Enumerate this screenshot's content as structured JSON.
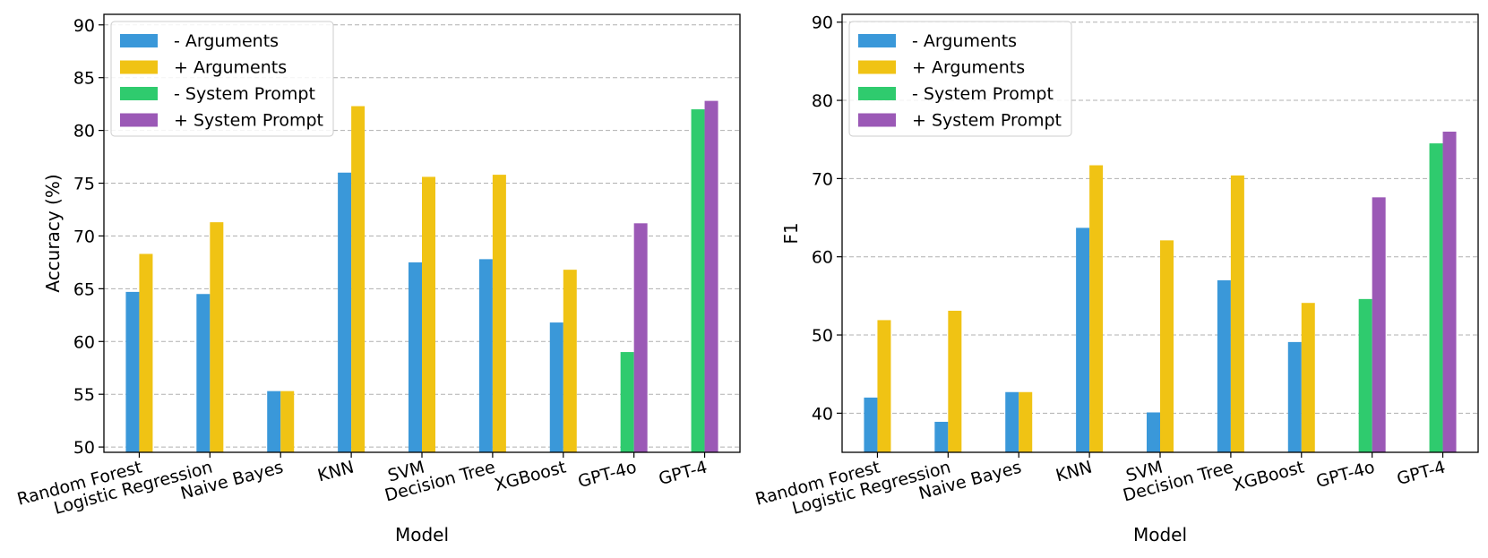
{
  "chart_data": [
    {
      "type": "bar",
      "categories": [
        "Random Forest",
        "Logistic Regression",
        "Naive Bayes",
        "KNN",
        "SVM",
        "Decision Tree",
        "XGBoost",
        "GPT-4o",
        "GPT-4"
      ],
      "series": [
        {
          "name": "- Arguments",
          "values": [
            64.7,
            64.5,
            55.3,
            76.0,
            67.5,
            67.8,
            61.8,
            null,
            null
          ]
        },
        {
          "name": "+ Arguments",
          "values": [
            68.3,
            71.3,
            55.3,
            82.3,
            75.6,
            75.8,
            66.8,
            null,
            null
          ]
        },
        {
          "name": "- System Prompt",
          "values": [
            null,
            null,
            null,
            null,
            null,
            null,
            null,
            59.0,
            82.0
          ]
        },
        {
          "name": "+ System Prompt",
          "values": [
            null,
            null,
            null,
            null,
            null,
            null,
            null,
            71.2,
            82.8
          ]
        }
      ],
      "xlabel": "Model",
      "ylabel": "Accuracy (%)",
      "ylim": [
        49.5,
        91
      ],
      "yticks": [
        50,
        55,
        60,
        65,
        70,
        75,
        80,
        85,
        90
      ],
      "legend": "top-left"
    },
    {
      "type": "bar",
      "categories": [
        "Random Forest",
        "Logistic Regression",
        "Naive Bayes",
        "KNN",
        "SVM",
        "Decision Tree",
        "XGBoost",
        "GPT-4o",
        "GPT-4"
      ],
      "series": [
        {
          "name": "- Arguments",
          "values": [
            42.0,
            38.9,
            42.7,
            63.7,
            40.1,
            57.0,
            49.1,
            null,
            null
          ]
        },
        {
          "name": "+ Arguments",
          "values": [
            51.9,
            53.1,
            42.7,
            71.7,
            62.1,
            70.4,
            54.1,
            null,
            null
          ]
        },
        {
          "name": "- System Prompt",
          "values": [
            null,
            null,
            null,
            null,
            null,
            null,
            null,
            54.6,
            74.5
          ]
        },
        {
          "name": "+ System Prompt",
          "values": [
            null,
            null,
            null,
            null,
            null,
            null,
            null,
            67.6,
            76.0
          ]
        }
      ],
      "xlabel": "Model",
      "ylabel": "F1",
      "ylim": [
        35,
        91
      ],
      "yticks": [
        40,
        50,
        60,
        70,
        80,
        90
      ],
      "legend": "top-left"
    }
  ],
  "colors": {
    "- Arguments": "#3a98d9",
    "+ Arguments": "#f0c314",
    "- System Prompt": "#2fcb6e",
    "+ System Prompt": "#9b59b6"
  }
}
